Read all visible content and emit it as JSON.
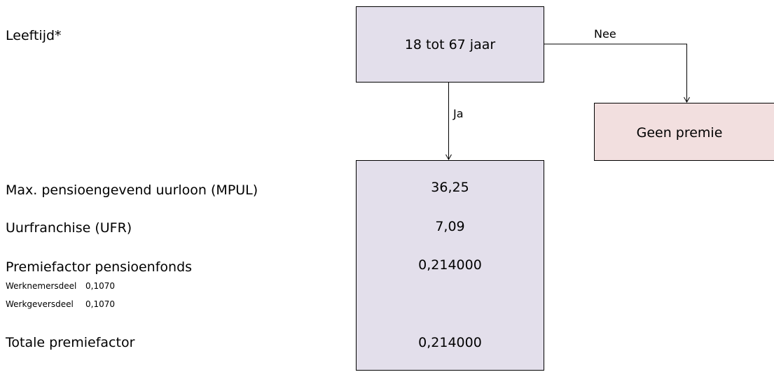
{
  "colors": {
    "decision_fill": "#e3dfeb",
    "no_premium_fill": "#f2dfdf",
    "result_fill": "#e3dfeb",
    "stroke": "#000000"
  },
  "labels": {
    "age": "Leeftijd*",
    "mpul": "Max. pensioengevend uurloon (MPUL)",
    "ufr": "Uurfranchise (UFR)",
    "premium_factor_fund": "Premiefactor pensioenfonds",
    "employee_part_label": "Werknemersdeel",
    "employee_part_value": "0,1070",
    "employer_part_label": "Werkgeversdeel",
    "employer_part_value": "0,1070",
    "total_premium_factor": "Totale premiefactor"
  },
  "decision": {
    "text": "18 tot 67 jaar"
  },
  "branches": {
    "yes": "Ja",
    "no": "Nee"
  },
  "no_premium": {
    "text": "Geen premie"
  },
  "values": {
    "mpul": "36,25",
    "ufr": "7,09",
    "premium_factor_fund": "0,214000",
    "total_premium_factor": "0,214000"
  }
}
